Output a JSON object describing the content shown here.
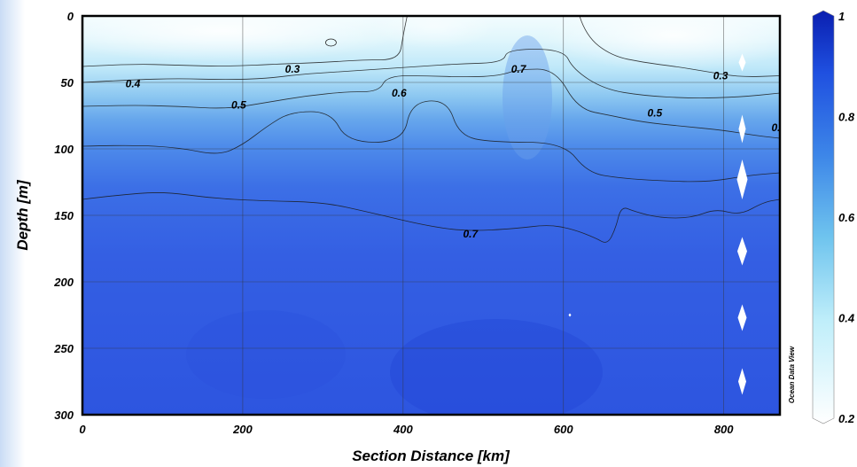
{
  "chart_data": {
    "type": "heatmap",
    "title": "",
    "xlabel": "Section Distance [km]",
    "ylabel": "Depth [m]",
    "xlim": [
      0,
      870
    ],
    "ylim": [
      300,
      0
    ],
    "x_ticks": [
      "0",
      "200",
      "400",
      "600",
      "800"
    ],
    "y_ticks": [
      "0",
      "50",
      "100",
      "150",
      "200",
      "250",
      "300"
    ],
    "grid": true,
    "colorbar": {
      "min": 0.2,
      "max": 1,
      "ticks": [
        "0.2",
        "0.4",
        "0.6",
        "0.8",
        "1"
      ],
      "colors": [
        "#ffffff",
        "#bfeefa",
        "#6fc4ee",
        "#3d86e8",
        "#1f50e0",
        "#0a1fb0"
      ]
    },
    "contour_labels": [
      {
        "text": "0.3",
        "x": 262,
        "y": 40
      },
      {
        "text": "0.4",
        "x": 63,
        "y": 51
      },
      {
        "text": "0.5",
        "x": 195,
        "y": 67
      },
      {
        "text": "0.6",
        "x": 395,
        "y": 58
      },
      {
        "text": "0.7",
        "x": 544,
        "y": 40
      },
      {
        "text": "0.3",
        "x": 796,
        "y": 45
      },
      {
        "text": "0.5",
        "x": 714,
        "y": 73
      },
      {
        "text": "0.",
        "x": 865,
        "y": 84
      },
      {
        "text": "0.7",
        "x": 484,
        "y": 164
      }
    ],
    "contours": [
      {
        "level": 0.3,
        "points": [
          [
            0,
            38
          ],
          [
            60,
            36
          ],
          [
            120,
            37
          ],
          [
            180,
            38
          ],
          [
            250,
            36
          ],
          [
            300,
            35
          ],
          [
            350,
            33
          ],
          [
            395,
            33
          ],
          [
            400,
            15
          ],
          [
            405,
            0
          ]
        ]
      },
      {
        "level": 0.3,
        "points": [
          [
            620,
            0
          ],
          [
            628,
            15
          ],
          [
            660,
            30
          ],
          [
            700,
            35
          ],
          [
            740,
            38
          ],
          [
            780,
            42
          ],
          [
            820,
            46
          ],
          [
            870,
            45
          ]
        ]
      },
      {
        "level": 0.4,
        "points": [
          [
            0,
            50
          ],
          [
            60,
            48
          ],
          [
            120,
            47
          ],
          [
            180,
            48
          ],
          [
            230,
            47
          ],
          [
            270,
            44
          ],
          [
            320,
            42
          ],
          [
            370,
            40
          ],
          [
            420,
            38
          ],
          [
            470,
            36
          ],
          [
            525,
            35
          ],
          [
            530,
            25
          ],
          [
            600,
            25
          ],
          [
            612,
            40
          ],
          [
            650,
            55
          ],
          [
            700,
            60
          ],
          [
            760,
            62
          ],
          [
            820,
            61
          ],
          [
            870,
            58
          ]
        ]
      },
      {
        "level": 0.5,
        "points": [
          [
            0,
            68
          ],
          [
            60,
            67
          ],
          [
            120,
            68
          ],
          [
            180,
            70
          ],
          [
            230,
            65
          ],
          [
            280,
            60
          ],
          [
            330,
            57
          ],
          [
            370,
            57
          ],
          [
            380,
            45
          ],
          [
            430,
            45
          ],
          [
            480,
            46
          ],
          [
            520,
            45
          ],
          [
            545,
            40
          ],
          [
            590,
            40
          ],
          [
            618,
            70
          ],
          [
            660,
            75
          ],
          [
            700,
            80
          ],
          [
            750,
            83
          ],
          [
            800,
            86
          ],
          [
            840,
            90
          ],
          [
            870,
            92
          ]
        ]
      },
      {
        "level": 0.6,
        "points": [
          [
            0,
            98
          ],
          [
            60,
            97
          ],
          [
            120,
            99
          ],
          [
            170,
            105
          ],
          [
            200,
            97
          ],
          [
            230,
            83
          ],
          [
            260,
            72
          ],
          [
            310,
            72
          ],
          [
            330,
            95
          ],
          [
            400,
            95
          ],
          [
            410,
            65
          ],
          [
            455,
            63
          ],
          [
            470,
            90
          ],
          [
            510,
            95
          ],
          [
            600,
            95
          ],
          [
            630,
            118
          ],
          [
            670,
            122
          ],
          [
            720,
            124
          ],
          [
            780,
            125
          ],
          [
            830,
            120
          ],
          [
            870,
            118
          ]
        ]
      },
      {
        "level": 0.7,
        "points": [
          [
            0,
            138
          ],
          [
            40,
            135
          ],
          [
            100,
            132
          ],
          [
            160,
            137
          ],
          [
            220,
            139
          ],
          [
            300,
            140
          ],
          [
            360,
            148
          ],
          [
            430,
            158
          ],
          [
            480,
            162
          ],
          [
            540,
            160
          ],
          [
            580,
            157
          ],
          [
            610,
            160
          ],
          [
            640,
            167
          ],
          [
            655,
            172
          ],
          [
            665,
            160
          ],
          [
            672,
            143
          ],
          [
            688,
            147
          ],
          [
            720,
            152
          ],
          [
            760,
            152
          ],
          [
            790,
            145
          ],
          [
            820,
            150
          ],
          [
            850,
            140
          ],
          [
            870,
            138
          ]
        ]
      }
    ],
    "data_gaps": [
      {
        "x": 823,
        "y": 35,
        "w": 8,
        "h": 20
      },
      {
        "x": 823,
        "y": 85,
        "w": 8,
        "h": 32
      },
      {
        "x": 823,
        "y": 123,
        "w": 12,
        "h": 45
      },
      {
        "x": 823,
        "y": 177,
        "w": 11,
        "h": 32
      },
      {
        "x": 823,
        "y": 227,
        "w": 10,
        "h": 30
      },
      {
        "x": 823,
        "y": 275,
        "w": 9,
        "h": 30
      },
      {
        "x": 608,
        "y": 225,
        "w": 3,
        "h": 4
      }
    ],
    "watermark": "Ocean Data View"
  }
}
